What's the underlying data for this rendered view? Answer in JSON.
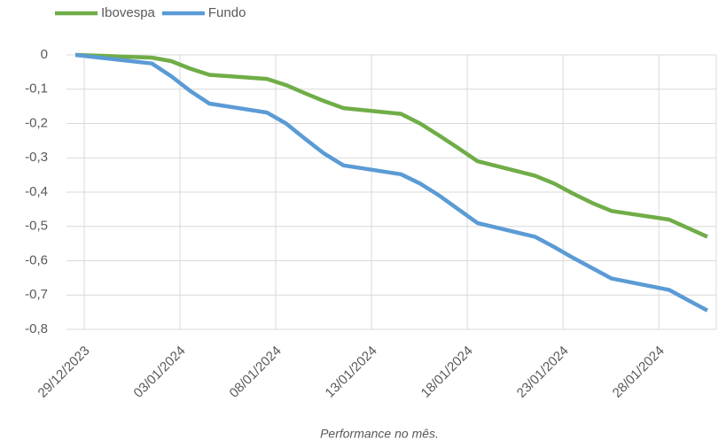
{
  "chart_data": {
    "type": "line",
    "caption": "Performance no mês.",
    "x": [
      "29/12/2023",
      "02/01/2024",
      "03/01/2024",
      "04/01/2024",
      "05/01/2024",
      "08/01/2024",
      "09/01/2024",
      "10/01/2024",
      "11/01/2024",
      "12/01/2024",
      "15/01/2024",
      "16/01/2024",
      "17/01/2024",
      "18/01/2024",
      "19/01/2024",
      "22/01/2024",
      "23/01/2024",
      "24/01/2024",
      "25/01/2024",
      "26/01/2024",
      "29/01/2024",
      "30/01/2024",
      "31/01/2024"
    ],
    "series": [
      {
        "name": "Ibovespa",
        "color": "#70ad47",
        "values": [
          0,
          -0.008,
          -0.018,
          -0.04,
          -0.058,
          -0.07,
          -0.088,
          -0.112,
          -0.135,
          -0.155,
          -0.172,
          -0.2,
          -0.235,
          -0.272,
          -0.31,
          -0.352,
          -0.375,
          -0.405,
          -0.432,
          -0.455,
          -0.48,
          -0.505,
          -0.53
        ]
      },
      {
        "name": "Fundo",
        "color": "#5b9bd5",
        "values": [
          0,
          -0.025,
          -0.062,
          -0.105,
          -0.142,
          -0.168,
          -0.2,
          -0.245,
          -0.288,
          -0.322,
          -0.348,
          -0.375,
          -0.41,
          -0.45,
          -0.49,
          -0.53,
          -0.56,
          -0.592,
          -0.622,
          -0.652,
          -0.685,
          -0.715,
          -0.745
        ]
      }
    ],
    "xlim": [
      "29/12/2023",
      "31/01/2024"
    ],
    "xticks": [
      "29/12/2023",
      "03/01/2024",
      "08/01/2024",
      "13/01/2024",
      "18/01/2024",
      "23/01/2024",
      "28/01/2024"
    ],
    "ylim": [
      -0.8,
      0
    ],
    "yticks": [
      0,
      {
        "value": -0.1,
        "label": "-0,1"
      },
      {
        "value": -0.2,
        "label": "-0,2"
      },
      {
        "value": -0.3,
        "label": "-0,3"
      },
      {
        "value": -0.4,
        "label": "-0,4"
      },
      {
        "value": -0.5,
        "label": "-0,5"
      },
      {
        "value": -0.6,
        "label": "-0,6"
      },
      {
        "value": -0.7,
        "label": "-0,7"
      },
      {
        "value": -0.8,
        "label": "-0,8"
      }
    ],
    "grid": true,
    "legend": "top-left"
  }
}
